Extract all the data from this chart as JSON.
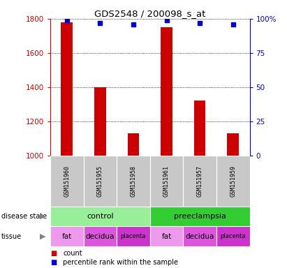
{
  "title": "GDS2548 / 200098_s_at",
  "samples": [
    "GSM151960",
    "GSM151955",
    "GSM151958",
    "GSM151961",
    "GSM151957",
    "GSM151959"
  ],
  "counts": [
    1780,
    1400,
    1130,
    1750,
    1320,
    1130
  ],
  "percentile_ranks": [
    99,
    97,
    96,
    99,
    97,
    96
  ],
  "ylim_left": [
    1000,
    1800
  ],
  "ylim_right": [
    0,
    100
  ],
  "yticks_left": [
    1000,
    1200,
    1400,
    1600,
    1800
  ],
  "yticks_right": [
    0,
    25,
    50,
    75,
    100
  ],
  "bar_color": "#cc0000",
  "dot_color": "#0000cc",
  "bar_width": 0.35,
  "control_color": "#99ee99",
  "preeclampsia_color": "#33cc33",
  "tissue_colors": [
    "#ee99ee",
    "#dd55dd",
    "#cc33cc",
    "#ee99ee",
    "#dd55dd",
    "#cc33cc"
  ],
  "tissue_labels": [
    "fat",
    "decidua",
    "placenta",
    "fat",
    "decidua",
    "placenta"
  ],
  "sample_bg_color": "#c8c8c8",
  "legend_count_color": "#cc0000",
  "legend_pct_color": "#0000cc"
}
